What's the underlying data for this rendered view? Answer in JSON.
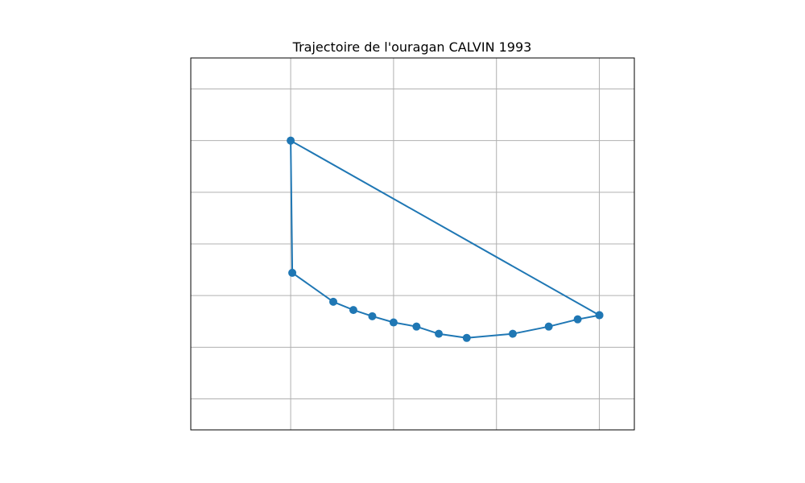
{
  "chart_data": {
    "type": "line",
    "title": "Trajectoire de l'ouragan CALVIN 1993",
    "xlabel": "",
    "ylabel": "",
    "grid": true,
    "axes_labels_visible": false,
    "xlim": [
      -4.97,
      17.1
    ],
    "ylim": [
      -15.2,
      20.8
    ],
    "x_gridlines": [
      0,
      5.12,
      10.24,
      15.36
    ],
    "y_gridlines": [
      -12.2,
      -7.2,
      -2.2,
      2.8,
      7.8,
      12.8,
      17.8
    ],
    "series": [
      {
        "color": "#1f77b4",
        "marker": "circle",
        "x": [
          15.36,
          14.28,
          12.84,
          11.05,
          8.76,
          7.37,
          6.26,
          5.12,
          4.06,
          3.12,
          2.12,
          0.08,
          0.0,
          15.36
        ],
        "y": [
          -4.1,
          -4.5,
          -5.2,
          -5.9,
          -6.3,
          -5.9,
          -5.2,
          -4.8,
          -4.2,
          -3.6,
          -2.8,
          0.0,
          12.8,
          -4.1
        ]
      }
    ]
  }
}
